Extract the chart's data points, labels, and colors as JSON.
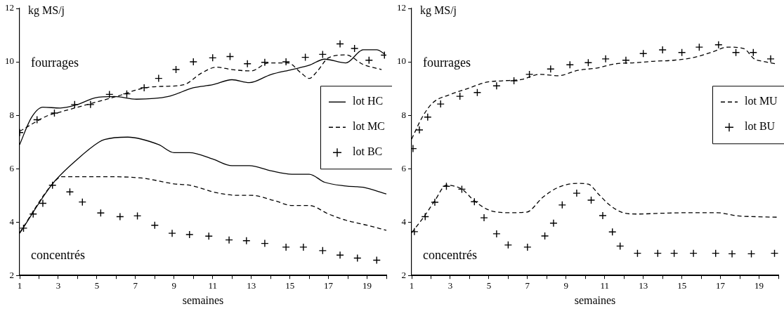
{
  "chart_data": [
    {
      "type": "line",
      "xlabel": "semaines",
      "ylabel": "kg MS/j",
      "annotations": [
        "fourrages",
        "concentrés"
      ],
      "legend": "right",
      "xlim": [
        1,
        20
      ],
      "ylim": [
        2,
        12
      ],
      "xticks": [
        1,
        {
          "value": 2,
          "label": null
        },
        3,
        {
          "value": 4,
          "label": null
        },
        5,
        {
          "value": 6,
          "label": null
        },
        7,
        {
          "value": 8,
          "label": null
        },
        9,
        {
          "value": 10,
          "label": null
        },
        11,
        {
          "value": 12,
          "label": null
        },
        13,
        {
          "value": 14,
          "label": null
        },
        15,
        {
          "value": 16,
          "label": null
        },
        17,
        {
          "value": 18,
          "label": null
        },
        19,
        {
          "value": 20,
          "label": null
        }
      ],
      "yticks": [
        2,
        4,
        6,
        8,
        10,
        12
      ],
      "series": [
        {
          "name": "lot HC",
          "type": "line",
          "line_style": "solid",
          "marker": "none",
          "color": "#000000",
          "x": [
            1,
            1.6,
            2.2,
            3.1,
            4.0,
            4.9,
            5.9,
            7.05,
            8.7,
            10,
            11,
            12,
            12.9,
            14,
            15.1,
            16,
            16.8,
            17.9,
            18.8,
            19.5,
            19.9
          ],
          "values": [
            6.9,
            7.9,
            8.3,
            8.27,
            8.4,
            8.65,
            8.7,
            8.6,
            8.7,
            9.03,
            9.14,
            9.33,
            9.22,
            9.52,
            9.71,
            9.87,
            10.1,
            9.96,
            10.45,
            10.45,
            10.3
          ]
        },
        {
          "type": "line",
          "line_style": "solid",
          "marker": "none",
          "color": "#000000",
          "x": [
            1,
            2.7,
            4,
            5.1,
            5.4,
            6.6,
            8.2,
            9,
            9.8,
            11,
            12,
            12.9,
            14,
            15.1,
            16,
            16.8,
            17.9,
            18.8,
            20
          ],
          "values": [
            3.58,
            5.43,
            6.36,
            6.99,
            7.09,
            7.18,
            6.9,
            6.6,
            6.6,
            6.36,
            6.11,
            6.11,
            5.92,
            5.79,
            5.79,
            5.49,
            5.35,
            5.3,
            5.05
          ]
        },
        {
          "name": "lot MC",
          "type": "line",
          "line_style": "dashed",
          "marker": "none",
          "color": "#000000",
          "x": [
            1,
            2.5,
            3,
            4,
            5,
            6,
            7.5,
            8.4,
            9.5,
            10.4,
            11.2,
            12,
            13,
            13.9,
            14.9,
            15.6,
            16,
            16.4,
            17,
            17.9,
            18.8,
            19.75
          ],
          "values": [
            7.4,
            8.0,
            8.1,
            8.3,
            8.5,
            8.7,
            9.03,
            9.08,
            9.14,
            9.57,
            9.8,
            9.71,
            9.66,
            9.96,
            9.96,
            9.57,
            9.38,
            9.63,
            10.15,
            10.26,
            9.9,
            9.71
          ]
        },
        {
          "type": "line",
          "line_style": "dashed",
          "marker": "none",
          "color": "#000000",
          "x": [
            1,
            2.7,
            3.2,
            5,
            7.3,
            9,
            9.8,
            11.2,
            12.3,
            13,
            14.2,
            15.1,
            16,
            17,
            17.9,
            19,
            20
          ],
          "values": [
            3.6,
            5.43,
            5.7,
            5.7,
            5.65,
            5.43,
            5.38,
            5.1,
            5.0,
            5.0,
            4.8,
            4.62,
            4.62,
            4.3,
            4.07,
            3.88,
            3.69
          ]
        },
        {
          "name": "lot BC",
          "type": "scatter",
          "marker": "cross",
          "color": "#000000",
          "x": [
            1,
            1.9,
            2.8,
            3.85,
            4.67,
            5.65,
            6.55,
            7.45,
            8.2,
            9.1,
            10,
            11,
            11.9,
            12.8,
            13.7,
            14.8,
            15.8,
            16.7,
            17.6,
            18.35,
            19.1,
            19.9
          ],
          "values": [
            7.35,
            7.83,
            8.08,
            8.4,
            8.4,
            8.78,
            8.8,
            9.03,
            9.38,
            9.71,
            10.0,
            10.15,
            10.2,
            9.93,
            9.98,
            10.0,
            10.17,
            10.28,
            10.67,
            10.5,
            10.06,
            10.25
          ]
        },
        {
          "type": "scatter",
          "marker": "cross",
          "color": "#000000",
          "x": [
            1.2,
            1.7,
            2.2,
            2.7,
            3.6,
            4.25,
            5.2,
            6.2,
            7.1,
            8.0,
            8.9,
            9.8,
            10.8,
            11.85,
            12.75,
            13.7,
            14.8,
            15.7,
            16.7,
            17.6,
            18.5,
            19.5
          ],
          "values": [
            3.77,
            4.3,
            4.7,
            5.38,
            5.13,
            4.75,
            4.34,
            4.2,
            4.23,
            3.88,
            3.58,
            3.53,
            3.47,
            3.33,
            3.3,
            3.2,
            3.06,
            3.06,
            2.93,
            2.76,
            2.65,
            2.57
          ]
        }
      ]
    },
    {
      "type": "line",
      "xlabel": "semaines",
      "ylabel": "kg MS/j",
      "annotations": [
        "fourrages",
        "concentrés"
      ],
      "legend": "right",
      "xlim": [
        1,
        20
      ],
      "ylim": [
        2,
        12
      ],
      "xticks": [
        1,
        {
          "value": 2,
          "label": null
        },
        3,
        {
          "value": 4,
          "label": null
        },
        5,
        {
          "value": 6,
          "label": null
        },
        7,
        {
          "value": 8,
          "label": null
        },
        9,
        {
          "value": 10,
          "label": null
        },
        11,
        {
          "value": 12,
          "label": null
        },
        13,
        {
          "value": 14,
          "label": null
        },
        15,
        {
          "value": 16,
          "label": null
        },
        17,
        {
          "value": 18,
          "label": null
        },
        19,
        {
          "value": 20,
          "label": null
        }
      ],
      "yticks": [
        2,
        4,
        6,
        8,
        10,
        12
      ],
      "series": [
        {
          "name": "lot MU",
          "type": "line",
          "line_style": "dashed",
          "marker": "none",
          "color": "#000000",
          "x": [
            1,
            1.55,
            2.1,
            2.94,
            3.9,
            4.9,
            5.7,
            6.7,
            7.65,
            8.6,
            9.6,
            10.6,
            11.5,
            12.65,
            13.5,
            14.6,
            15.6,
            16.5,
            17.4,
            18.2,
            18.75,
            19.2,
            19.9
          ],
          "values": [
            7.11,
            7.93,
            8.47,
            8.76,
            9.0,
            9.24,
            9.29,
            9.34,
            9.53,
            9.48,
            9.68,
            9.77,
            9.92,
            9.97,
            10.02,
            10.06,
            10.16,
            10.35,
            10.55,
            10.5,
            10.11,
            10.02,
            9.92
          ]
        },
        {
          "type": "line",
          "line_style": "dashed",
          "marker": "none",
          "color": "#000000",
          "x": [
            1,
            1.7,
            2.2,
            2.8,
            3.6,
            4.25,
            5.0,
            6,
            6.95,
            7.8,
            8.6,
            9.6,
            10.15,
            10.7,
            11.25,
            11.95,
            12.65,
            14,
            15.4,
            16.8,
            17.9,
            18.9,
            20
          ],
          "values": [
            3.6,
            4.26,
            4.8,
            5.38,
            5.23,
            4.79,
            4.45,
            4.35,
            4.37,
            4.93,
            5.3,
            5.45,
            5.42,
            5.03,
            4.64,
            4.35,
            4.3,
            4.33,
            4.35,
            4.35,
            4.23,
            4.2,
            4.18
          ]
        },
        {
          "name": "lot BU",
          "type": "scatter",
          "marker": "cross",
          "color": "#000000",
          "x": [
            1.07,
            1.4,
            1.83,
            2.5,
            3.5,
            4.4,
            5.4,
            6.3,
            7.1,
            8.2,
            9.2,
            10.15,
            11.05,
            12.1,
            13.0,
            14.0,
            15.0,
            15.9,
            16.9,
            17.8,
            18.7,
            19.6
          ],
          "values": [
            6.75,
            7.45,
            7.93,
            8.42,
            8.71,
            8.85,
            9.1,
            9.29,
            9.53,
            9.73,
            9.89,
            9.97,
            10.11,
            10.06,
            10.31,
            10.45,
            10.35,
            10.55,
            10.64,
            10.35,
            10.35,
            10.11
          ]
        },
        {
          "type": "scatter",
          "marker": "cross",
          "color": "#000000",
          "x": [
            1.14,
            1.7,
            2.2,
            2.8,
            3.6,
            4.25,
            4.75,
            5.4,
            6,
            7.0,
            7.9,
            8.35,
            8.8,
            9.55,
            10.3,
            10.9,
            11.4,
            11.8,
            12.7,
            13.75,
            14.6,
            15.6,
            16.75,
            17.6,
            18.6,
            19.8
          ],
          "values": [
            3.64,
            4.2,
            4.74,
            5.34,
            5.23,
            4.76,
            4.16,
            3.56,
            3.14,
            3.06,
            3.48,
            3.96,
            4.64,
            5.08,
            4.82,
            4.24,
            3.63,
            3.1,
            2.83,
            2.83,
            2.83,
            2.83,
            2.83,
            2.81,
            2.81,
            2.83
          ]
        }
      ]
    }
  ]
}
